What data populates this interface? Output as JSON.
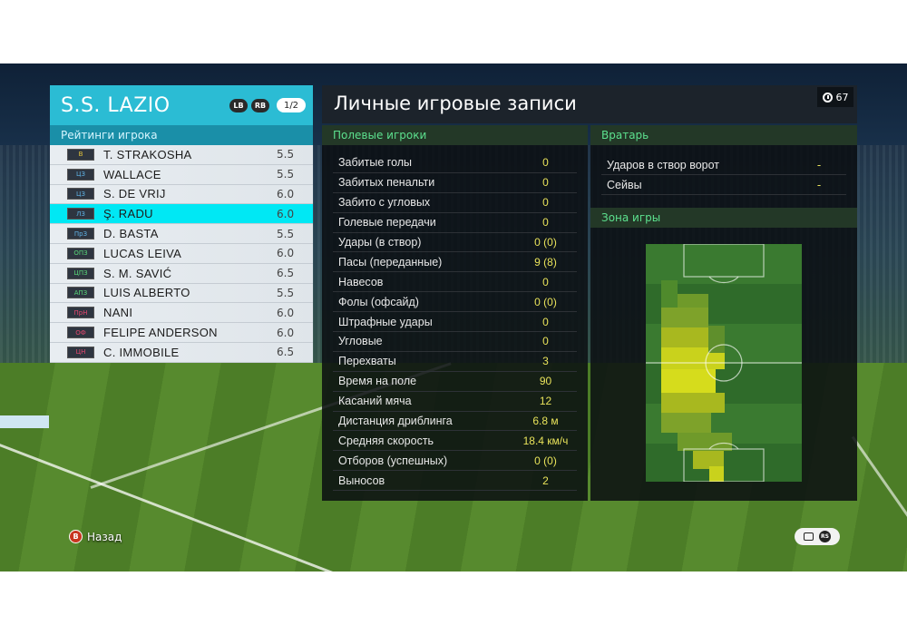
{
  "team": {
    "name": "S.S. LAZIO",
    "lb_button": "LB",
    "rb_button": "RB",
    "page_indicator": "1/2",
    "ratings_title": "Рейтинги игрока"
  },
  "players": [
    {
      "pos": "В",
      "pos_color": "#e3c43a",
      "name": "T. STRAKOSHA",
      "rating": "5.5",
      "selected": false
    },
    {
      "pos": "ЦЗ",
      "pos_color": "#5fb3e6",
      "name": "WALLACE",
      "rating": "5.5",
      "selected": false
    },
    {
      "pos": "ЦЗ",
      "pos_color": "#5fb3e6",
      "name": "S. DE VRIJ",
      "rating": "6.0",
      "selected": false
    },
    {
      "pos": "ЛЗ",
      "pos_color": "#5fb3e6",
      "name": "Ş. RADU",
      "rating": "6.0",
      "selected": true
    },
    {
      "pos": "ПрЗ",
      "pos_color": "#5fb3e6",
      "name": "D. BASTA",
      "rating": "5.5",
      "selected": false
    },
    {
      "pos": "ОПЗ",
      "pos_color": "#59d879",
      "name": "LUCAS LEIVA",
      "rating": "6.0",
      "selected": false
    },
    {
      "pos": "ЦПЗ",
      "pos_color": "#59d879",
      "name": "S. M. SAVIĆ",
      "rating": "6.5",
      "selected": false
    },
    {
      "pos": "АПЗ",
      "pos_color": "#59d879",
      "name": "LUIS ALBERTO",
      "rating": "5.5",
      "selected": false
    },
    {
      "pos": "ПрН",
      "pos_color": "#e6476f",
      "name": "NANI",
      "rating": "6.0",
      "selected": false
    },
    {
      "pos": "ОФ",
      "pos_color": "#e6476f",
      "name": "FELIPE ANDERSON",
      "rating": "6.0",
      "selected": false
    },
    {
      "pos": "ЦН",
      "pos_color": "#e6476f",
      "name": "C. IMMOBILE",
      "rating": "6.5",
      "selected": false
    }
  ],
  "stats": {
    "title": "Личные игровые записи",
    "timer": "67",
    "field_heading": "Полевые игроки",
    "field_rows": [
      {
        "label": "Забитые голы",
        "value": "0"
      },
      {
        "label": "Забитых пенальти",
        "value": "0"
      },
      {
        "label": "Забито с угловых",
        "value": "0"
      },
      {
        "label": "Голевые передачи",
        "value": "0"
      },
      {
        "label": "Удары (в створ)",
        "value": "0 (0)"
      },
      {
        "label": "Пасы (переданные)",
        "value": "9 (8)"
      },
      {
        "label": "Навесов",
        "value": "0"
      },
      {
        "label": "Фолы (офсайд)",
        "value": "0 (0)"
      },
      {
        "label": "Штрафные удары",
        "value": "0"
      },
      {
        "label": "Угловые",
        "value": "0"
      },
      {
        "label": "Перехваты",
        "value": "3"
      },
      {
        "label": "Время на поле",
        "value": "90"
      },
      {
        "label": "Касаний мяча",
        "value": "12"
      },
      {
        "label": "Дистанция дриблинга",
        "value": "6.8 м"
      },
      {
        "label": "Средняя скорость",
        "value": "18.4 км/ч"
      },
      {
        "label": "Отборов (успешных)",
        "value": "0 (0)"
      },
      {
        "label": "Выносов",
        "value": "2"
      }
    ],
    "gk_heading": "Вратарь",
    "gk_rows": [
      {
        "label": "Ударов в створ ворот",
        "value": "-"
      },
      {
        "label": "Сейвы",
        "value": "-"
      }
    ],
    "zone_heading": "Зона игры",
    "heatmap_colors": {
      "pitch_dark": "#2f6b2a",
      "pitch_light": "#3a7a30",
      "heat_low": "#6f9a2a",
      "heat_mid": "#a8b81f",
      "heat_high": "#d6dc1c"
    }
  },
  "controls": {
    "back_button": "B",
    "back_label": "Назад",
    "rs_label": "RS"
  }
}
